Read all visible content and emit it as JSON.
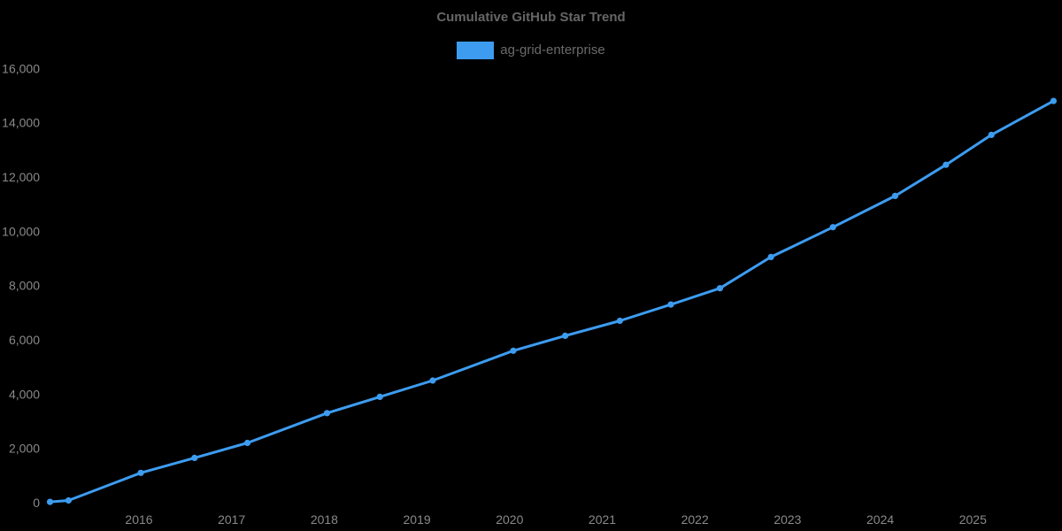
{
  "page": {
    "background_color": "#000000"
  },
  "chart": {
    "title": "Cumulative GitHub Star Trend",
    "legend": {
      "label": "ag-grid-enterprise",
      "swatch_color": "#3d9cf0"
    },
    "colors": {
      "line": "#3d9cf0",
      "marker": "#3d9cf0",
      "title_text": "#666666",
      "legend_text": "#6b6b6b",
      "tick_text": "#898989",
      "background": "#000000"
    }
  },
  "chart_data": {
    "type": "line",
    "title": "Cumulative GitHub Star Trend",
    "xlabel": "",
    "ylabel": "",
    "grid": false,
    "legend_position": "top",
    "xlim": [
      2014.98,
      2025.95
    ],
    "ylim": [
      0,
      16000
    ],
    "x_ticks": [
      {
        "value": 2016,
        "label": "2016"
      },
      {
        "value": 2017,
        "label": "2017"
      },
      {
        "value": 2018,
        "label": "2018"
      },
      {
        "value": 2019,
        "label": "2019"
      },
      {
        "value": 2020,
        "label": "2020"
      },
      {
        "value": 2021,
        "label": "2021"
      },
      {
        "value": 2022,
        "label": "2022"
      },
      {
        "value": 2023,
        "label": "2023"
      },
      {
        "value": 2024,
        "label": "2024"
      },
      {
        "value": 2025,
        "label": "2025"
      }
    ],
    "y_ticks": [
      {
        "value": 0,
        "label": "0"
      },
      {
        "value": 2000,
        "label": "2,000"
      },
      {
        "value": 4000,
        "label": "4,000"
      },
      {
        "value": 6000,
        "label": "6,000"
      },
      {
        "value": 8000,
        "label": "8,000"
      },
      {
        "value": 10000,
        "label": "10,000"
      },
      {
        "value": 12000,
        "label": "12,000"
      },
      {
        "value": 14000,
        "label": "14,000"
      },
      {
        "value": 16000,
        "label": "16,000"
      }
    ],
    "series": [
      {
        "name": "ag-grid-enterprise",
        "color": "#3d9cf0",
        "points": [
          {
            "x": 2015.04,
            "y": 30
          },
          {
            "x": 2015.24,
            "y": 80
          },
          {
            "x": 2016.02,
            "y": 1100
          },
          {
            "x": 2016.6,
            "y": 1650
          },
          {
            "x": 2017.17,
            "y": 2200
          },
          {
            "x": 2018.03,
            "y": 3300
          },
          {
            "x": 2018.6,
            "y": 3900
          },
          {
            "x": 2019.17,
            "y": 4500
          },
          {
            "x": 2020.04,
            "y": 5600
          },
          {
            "x": 2020.6,
            "y": 6150
          },
          {
            "x": 2021.19,
            "y": 6700
          },
          {
            "x": 2021.74,
            "y": 7300
          },
          {
            "x": 2022.27,
            "y": 7900
          },
          {
            "x": 2022.82,
            "y": 9050
          },
          {
            "x": 2023.49,
            "y": 10150
          },
          {
            "x": 2024.16,
            "y": 11300
          },
          {
            "x": 2024.71,
            "y": 12450
          },
          {
            "x": 2025.2,
            "y": 13550
          },
          {
            "x": 2025.87,
            "y": 14800
          }
        ]
      }
    ]
  }
}
